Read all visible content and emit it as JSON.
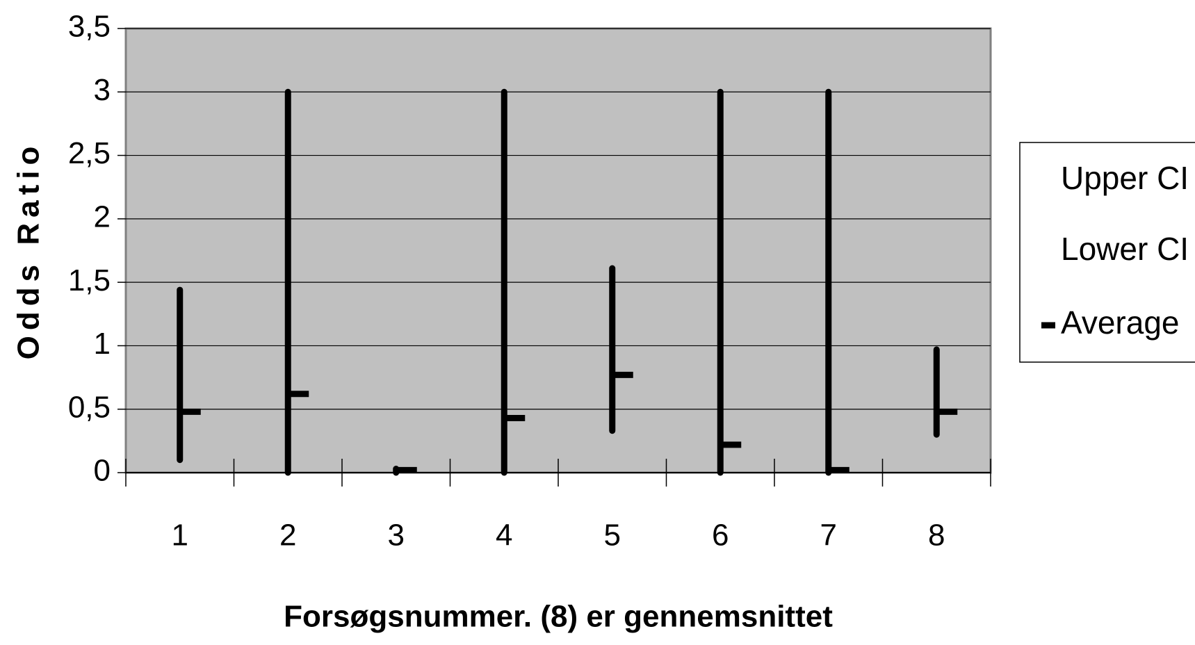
{
  "chart_data": {
    "type": "stock",
    "x_label": "Forsøgsnummer. (8) er gennemsnittet",
    "y_label": "Odds Ratio",
    "categories": [
      "1",
      "2",
      "3",
      "4",
      "5",
      "6",
      "7",
      "8"
    ],
    "series": [
      {
        "name": "Upper CI",
        "color": "#000000",
        "values": [
          1.44,
          3.0,
          0.03,
          3.0,
          1.61,
          3.0,
          3.0,
          0.97
        ]
      },
      {
        "name": "Lower CI",
        "color": "#000000",
        "values": [
          0.1,
          0.0,
          0.0,
          0.0,
          0.33,
          0.0,
          0.0,
          0.3
        ]
      },
      {
        "name": "Average",
        "color": "#000000",
        "values": [
          0.48,
          0.62,
          0.02,
          0.43,
          0.77,
          0.22,
          0.02,
          0.48
        ]
      }
    ],
    "ylim": [
      0,
      3.5
    ],
    "yticks": [
      0,
      {
        "value": 0.5,
        "label": "0,5"
      },
      1,
      {
        "value": 1.5,
        "label": "1,5"
      },
      2,
      {
        "value": 2.5,
        "label": "2,5"
      },
      3,
      {
        "value": 3.5,
        "label": "3,5"
      }
    ],
    "grid": true,
    "legend": "right",
    "plot_background": "#c0c0c0"
  }
}
